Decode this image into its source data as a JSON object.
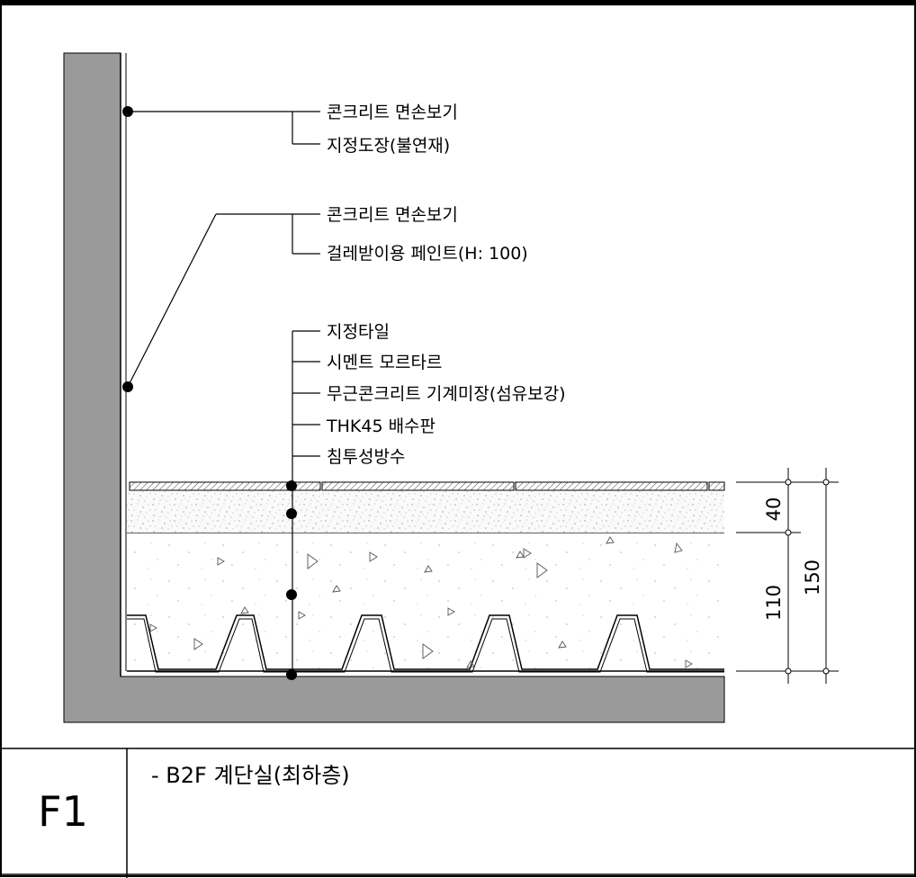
{
  "callouts": {
    "wall_upper": [
      "콘크리트 면손보기",
      "지정도장(불연재)"
    ],
    "wall_lower": [
      "콘크리트 면손보기",
      "걸레받이용 페인트(H: 100)"
    ],
    "floor": [
      "지정타일",
      "시멘트 모르타르",
      "무근콘크리트 기계미장(섬유보강)",
      "THK45 배수판",
      "침투성방수"
    ]
  },
  "dimensions": {
    "mortar_layer": "40",
    "concrete_layer": "110",
    "total": "150"
  },
  "footer": {
    "detail_code": "F1",
    "title": "- B2F 계단실(최하층)"
  }
}
